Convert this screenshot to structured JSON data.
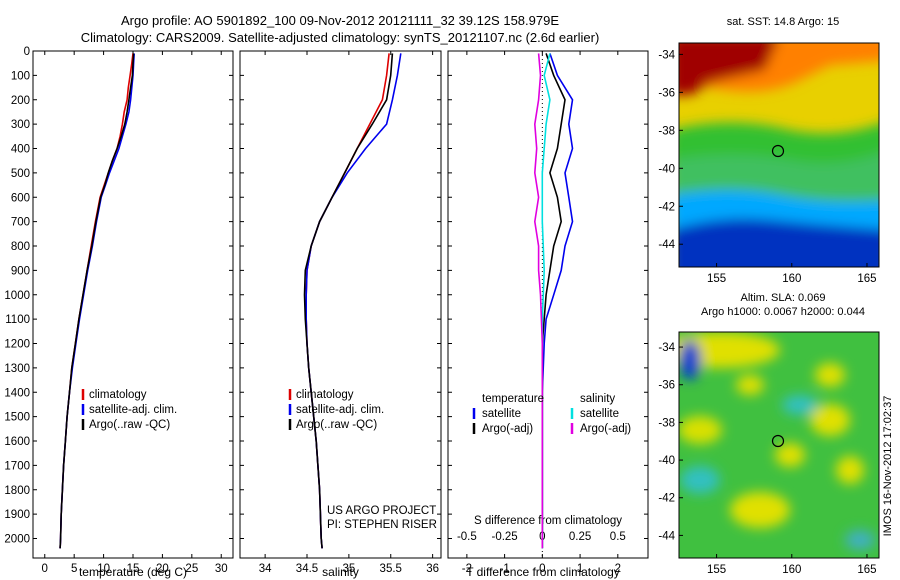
{
  "header": {
    "line1": "Argo profile: AO 5901892_100 09-Nov-2012 20121111_32 39.12S 158.979E",
    "line2": "Climatology: CARS2009. Satellite-adjusted climatology: synTS_20121107.nc (2.6d earlier)"
  },
  "footer_stamp": "IMOS 16-Nov-2012 17:02:37",
  "project_text": [
    "US ARGO PROJECT",
    "PI: STEPHEN RISER"
  ],
  "map_sst": {
    "title": "sat. SST: 14.8 Argo: 15"
  },
  "map_sla": {
    "title1": "Altim. SLA: 0.069",
    "title2": "Argo h1000: 0.0067 h2000: 0.044"
  },
  "colors": {
    "climatology": "#dd0000",
    "satellite": "#0000ee",
    "argo": "#000000",
    "cyan": "#00e0e0",
    "magenta": "#e000e0"
  },
  "chart_data": [
    {
      "type": "line",
      "xlabel": "temperature (deg C)",
      "xlim": [
        -2,
        32
      ],
      "ylim": [
        2080,
        0
      ],
      "xticks": [
        0,
        5,
        10,
        15,
        20,
        25,
        30
      ],
      "yticks": [
        0,
        100,
        200,
        300,
        400,
        500,
        600,
        700,
        800,
        900,
        1000,
        1100,
        1200,
        1300,
        1400,
        1500,
        1600,
        1700,
        1800,
        1900,
        2000
      ],
      "legend": [
        "climatology",
        "satellite-adj. clim.",
        "Argo(..raw -QC)"
      ],
      "series": [
        {
          "name": "climatology",
          "color": "red",
          "points": [
            [
              15.0,
              10
            ],
            [
              14.8,
              50
            ],
            [
              14.5,
              100
            ],
            [
              14.2,
              150
            ],
            [
              14.0,
              200
            ],
            [
              13.5,
              250
            ],
            [
              13.2,
              300
            ],
            [
              12.8,
              350
            ],
            [
              12.3,
              400
            ],
            [
              11.5,
              450
            ],
            [
              10.8,
              500
            ],
            [
              10.1,
              550
            ],
            [
              9.4,
              600
            ],
            [
              8.6,
              700
            ],
            [
              7.9,
              800
            ],
            [
              7.2,
              900
            ],
            [
              6.5,
              1000
            ],
            [
              5.8,
              1100
            ],
            [
              5.2,
              1200
            ],
            [
              4.6,
              1300
            ],
            [
              4.2,
              1400
            ],
            [
              3.8,
              1500
            ],
            [
              3.5,
              1600
            ],
            [
              3.2,
              1700
            ],
            [
              3.0,
              1800
            ],
            [
              2.8,
              1900
            ],
            [
              2.7,
              2000
            ],
            [
              2.6,
              2040
            ]
          ]
        },
        {
          "name": "satellite-adj. clim.",
          "color": "blue",
          "points": [
            [
              15.2,
              10
            ],
            [
              15.1,
              50
            ],
            [
              15.0,
              100
            ],
            [
              14.8,
              150
            ],
            [
              14.6,
              200
            ],
            [
              14.3,
              250
            ],
            [
              13.8,
              300
            ],
            [
              13.2,
              350
            ],
            [
              12.6,
              400
            ],
            [
              11.8,
              450
            ],
            [
              11.0,
              500
            ],
            [
              10.3,
              550
            ],
            [
              9.6,
              600
            ],
            [
              8.8,
              700
            ],
            [
              8.1,
              800
            ],
            [
              7.3,
              900
            ],
            [
              6.6,
              1000
            ],
            [
              5.9,
              1100
            ],
            [
              5.3,
              1200
            ],
            [
              4.7,
              1300
            ],
            [
              4.2,
              1400
            ],
            [
              3.8,
              1500
            ],
            [
              3.5,
              1600
            ],
            [
              3.2,
              1700
            ],
            [
              3.0,
              1800
            ],
            [
              2.8,
              1900
            ],
            [
              2.7,
              2000
            ],
            [
              2.6,
              2040
            ]
          ]
        },
        {
          "name": "Argo(..raw -QC)",
          "color": "black",
          "points": [
            [
              15.1,
              10
            ],
            [
              15.0,
              50
            ],
            [
              14.9,
              100
            ],
            [
              14.6,
              150
            ],
            [
              14.3,
              200
            ],
            [
              14.0,
              250
            ],
            [
              13.6,
              300
            ],
            [
              13.0,
              350
            ],
            [
              12.3,
              400
            ],
            [
              11.5,
              450
            ],
            [
              10.8,
              500
            ],
            [
              10.2,
              550
            ],
            [
              9.5,
              600
            ],
            [
              8.7,
              700
            ],
            [
              8.0,
              800
            ],
            [
              7.2,
              900
            ],
            [
              6.5,
              1000
            ],
            [
              5.8,
              1100
            ],
            [
              5.2,
              1200
            ],
            [
              4.6,
              1300
            ],
            [
              4.2,
              1400
            ],
            [
              3.8,
              1500
            ],
            [
              3.5,
              1600
            ],
            [
              3.2,
              1700
            ],
            [
              3.0,
              1800
            ],
            [
              2.8,
              1900
            ],
            [
              2.7,
              2000
            ],
            [
              2.6,
              2040
            ]
          ]
        }
      ]
    },
    {
      "type": "line",
      "xlabel": "salinity",
      "xlim": [
        33.7,
        36.1
      ],
      "ylim": [
        2080,
        0
      ],
      "xticks": [
        34,
        34.5,
        35,
        35.5,
        36
      ],
      "xtick_labels": [
        "34",
        "34.5",
        "35",
        "35.5",
        "36"
      ],
      "legend": [
        "climatology",
        "satellite-adj. clim.",
        "Argo(..raw -QC)"
      ],
      "series": [
        {
          "name": "climatology",
          "color": "red",
          "points": [
            [
              35.48,
              10
            ],
            [
              35.45,
              100
            ],
            [
              35.4,
              200
            ],
            [
              35.25,
              300
            ],
            [
              35.1,
              400
            ],
            [
              34.95,
              500
            ],
            [
              34.8,
              600
            ],
            [
              34.65,
              700
            ],
            [
              34.55,
              800
            ],
            [
              34.5,
              900
            ],
            [
              34.49,
              1000
            ],
            [
              34.49,
              1100
            ],
            [
              34.5,
              1200
            ],
            [
              34.52,
              1300
            ],
            [
              34.55,
              1400
            ],
            [
              34.58,
              1500
            ],
            [
              34.61,
              1600
            ],
            [
              34.63,
              1700
            ],
            [
              34.65,
              1800
            ],
            [
              34.66,
              1900
            ],
            [
              34.67,
              2000
            ],
            [
              34.68,
              2040
            ]
          ]
        },
        {
          "name": "satellite-adj. clim.",
          "color": "blue",
          "points": [
            [
              35.62,
              10
            ],
            [
              35.58,
              100
            ],
            [
              35.52,
              200
            ],
            [
              35.45,
              300
            ],
            [
              35.2,
              400
            ],
            [
              34.98,
              500
            ],
            [
              34.8,
              600
            ],
            [
              34.65,
              700
            ],
            [
              34.55,
              800
            ],
            [
              34.5,
              900
            ],
            [
              34.49,
              1000
            ],
            [
              34.49,
              1100
            ],
            [
              34.5,
              1200
            ],
            [
              34.52,
              1300
            ],
            [
              34.55,
              1400
            ],
            [
              34.58,
              1500
            ],
            [
              34.61,
              1600
            ],
            [
              34.63,
              1700
            ],
            [
              34.65,
              1800
            ],
            [
              34.66,
              1900
            ],
            [
              34.67,
              2000
            ],
            [
              34.68,
              2040
            ]
          ]
        },
        {
          "name": "Argo(..raw -QC)",
          "color": "black",
          "points": [
            [
              35.52,
              10
            ],
            [
              35.5,
              100
            ],
            [
              35.45,
              200
            ],
            [
              35.28,
              300
            ],
            [
              35.1,
              400
            ],
            [
              34.95,
              500
            ],
            [
              34.8,
              600
            ],
            [
              34.65,
              700
            ],
            [
              34.55,
              800
            ],
            [
              34.48,
              900
            ],
            [
              34.47,
              1000
            ],
            [
              34.48,
              1100
            ],
            [
              34.5,
              1200
            ],
            [
              34.52,
              1300
            ],
            [
              34.55,
              1400
            ],
            [
              34.58,
              1500
            ],
            [
              34.61,
              1600
            ],
            [
              34.63,
              1700
            ],
            [
              34.65,
              1800
            ],
            [
              34.66,
              1900
            ],
            [
              34.67,
              2000
            ],
            [
              34.68,
              2040
            ]
          ]
        }
      ]
    },
    {
      "type": "line",
      "xlabel": "T difference from climatology",
      "xlabel_top": "S difference from climatology",
      "xlim": [
        -2.5,
        2.8
      ],
      "ylim": [
        2080,
        0
      ],
      "xticks": [
        -2,
        -1,
        0,
        1,
        2
      ],
      "xticks_top": [
        -0.5,
        -0.25,
        0,
        0.25,
        0.5
      ],
      "legend": [
        "temperature",
        "satellite",
        "Argo(-adj)",
        "salinity",
        "satellite",
        "Argo(-adj)"
      ],
      "series": [
        {
          "name": "temperature satellite",
          "color": "blue",
          "points": [
            [
              0.2,
              10
            ],
            [
              0.4,
              100
            ],
            [
              0.8,
              200
            ],
            [
              0.7,
              300
            ],
            [
              0.8,
              400
            ],
            [
              0.6,
              500
            ],
            [
              0.7,
              600
            ],
            [
              0.8,
              700
            ],
            [
              0.6,
              800
            ],
            [
              0.5,
              900
            ],
            [
              0.3,
              1000
            ],
            [
              0.1,
              1100
            ],
            [
              0.05,
              1200
            ],
            [
              0.0,
              1400
            ],
            [
              0.0,
              2040
            ]
          ]
        },
        {
          "name": "temperature Argo(-adj)",
          "color": "black",
          "points": [
            [
              0.1,
              10
            ],
            [
              0.3,
              100
            ],
            [
              0.6,
              200
            ],
            [
              0.5,
              300
            ],
            [
              0.4,
              400
            ],
            [
              0.2,
              500
            ],
            [
              0.4,
              600
            ],
            [
              0.5,
              700
            ],
            [
              0.3,
              800
            ],
            [
              0.2,
              900
            ],
            [
              0.1,
              1000
            ],
            [
              0.05,
              1100
            ],
            [
              0.0,
              1200
            ],
            [
              0.0,
              2040
            ]
          ]
        },
        {
          "name": "salinity satellite",
          "color": "cyan",
          "points": [
            [
              0.2,
              10
            ],
            [
              0.05,
              100
            ],
            [
              0.2,
              200
            ],
            [
              0.1,
              300
            ],
            [
              0.05,
              400
            ],
            [
              0.0,
              500
            ],
            [
              0.0,
              700
            ],
            [
              0.05,
              900
            ],
            [
              0.0,
              1100
            ],
            [
              0.0,
              2040
            ]
          ]
        },
        {
          "name": "salinity Argo(-adj)",
          "color": "magenta",
          "points": [
            [
              -0.1,
              10
            ],
            [
              -0.05,
              100
            ],
            [
              -0.1,
              200
            ],
            [
              -0.2,
              300
            ],
            [
              -0.15,
              400
            ],
            [
              -0.2,
              500
            ],
            [
              -0.1,
              600
            ],
            [
              -0.2,
              700
            ],
            [
              -0.1,
              800
            ],
            [
              -0.1,
              900
            ],
            [
              -0.05,
              1000
            ],
            [
              0.0,
              1200
            ],
            [
              0.0,
              2040
            ]
          ]
        }
      ]
    }
  ]
}
